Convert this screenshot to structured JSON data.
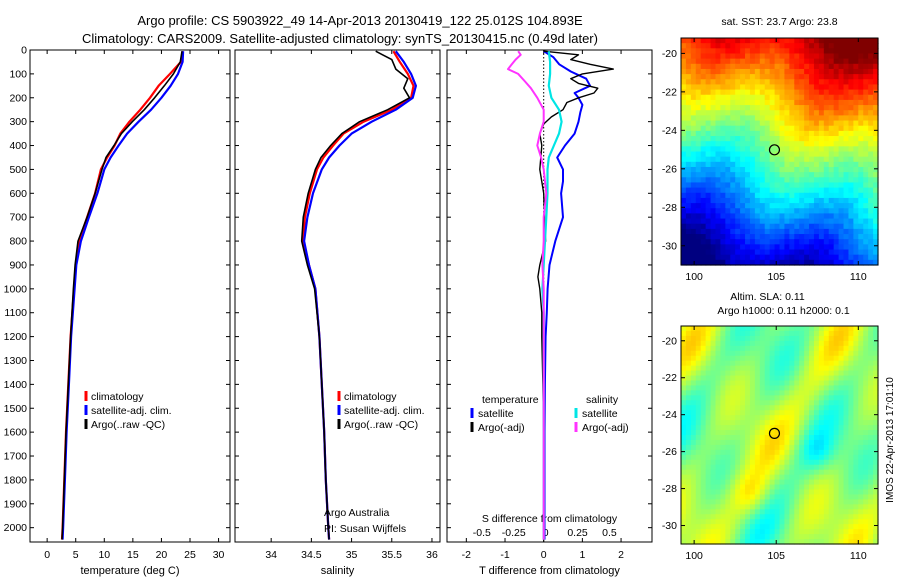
{
  "header": {
    "title_line1": "Argo profile: CS 5903922_49 14-Apr-2013 20130419_122 25.012S 104.893E",
    "title_line2": "Climatology: CARS2009. Satellite-adjusted climatology: synTS_20130415.nc (0.49d later)"
  },
  "credit": {
    "text": "IMOS 22-Apr-2013 17:01:10"
  },
  "colors": {
    "climatology": "#ff0000",
    "satellite": "#0000ff",
    "argo": "#000000",
    "sat_s": "#00e5e5",
    "argo_s": "#ff33ff"
  },
  "chart_data": [
    {
      "id": "temperature",
      "type": "line",
      "xlabel": "temperature (deg C)",
      "ylabel": "",
      "xlim": [
        -3,
        32
      ],
      "ylim": [
        2060,
        0
      ],
      "y_reversed": true,
      "xticks": [
        0,
        5,
        10,
        15,
        20,
        25,
        30
      ],
      "yticks": [
        0,
        100,
        200,
        300,
        400,
        500,
        600,
        700,
        800,
        900,
        1000,
        1100,
        1200,
        1300,
        1400,
        1500,
        1600,
        1700,
        1800,
        1900,
        2000
      ],
      "legend": [
        "climatology",
        "satellite-adj. clim.",
        "Argo(..raw -QC)"
      ],
      "legend_position": "lower-right",
      "series": [
        {
          "name": "climatology",
          "color": "#ff0000",
          "width": 2.2,
          "depth": [
            5,
            50,
            100,
            150,
            200,
            250,
            300,
            350,
            400,
            450,
            500,
            600,
            700,
            800,
            900,
            1000,
            1200,
            1400,
            1600,
            1800,
            2000,
            2050
          ],
          "values": [
            23.7,
            23.4,
            21.5,
            19.5,
            18.0,
            16.3,
            14.4,
            12.8,
            11.8,
            10.5,
            9.4,
            8.4,
            7.0,
            5.6,
            5.0,
            4.7,
            4.1,
            3.7,
            3.3,
            3.0,
            2.7,
            2.6
          ]
        },
        {
          "name": "satellite-adj. clim.",
          "color": "#0000ff",
          "width": 2.2,
          "depth": [
            5,
            50,
            100,
            150,
            200,
            250,
            300,
            350,
            400,
            450,
            500,
            600,
            700,
            800,
            900,
            1000,
            1200,
            1400,
            1600,
            1800,
            2000,
            2050
          ],
          "values": [
            23.8,
            23.7,
            22.9,
            21.6,
            20.0,
            18.2,
            16.0,
            14.0,
            12.5,
            11.1,
            10.0,
            8.8,
            7.3,
            5.9,
            5.1,
            4.8,
            4.2,
            3.8,
            3.4,
            3.1,
            2.8,
            2.7
          ]
        },
        {
          "name": "Argo(..raw -QC)",
          "color": "#000000",
          "width": 1.6,
          "depth": [
            5,
            50,
            100,
            150,
            200,
            250,
            300,
            350,
            400,
            450,
            500,
            600,
            700,
            800,
            900,
            1000,
            1200,
            1400,
            1600,
            1800,
            2000,
            2050
          ],
          "values": [
            23.6,
            23.3,
            22.1,
            20.5,
            18.8,
            17.0,
            14.9,
            13.0,
            11.7,
            10.3,
            9.6,
            8.4,
            7.0,
            5.4,
            4.9,
            4.6,
            4.1,
            3.7,
            3.3,
            3.0,
            2.7,
            2.6
          ]
        }
      ],
      "annotations": []
    },
    {
      "id": "salinity",
      "type": "line",
      "xlabel": "salinity",
      "ylabel": "",
      "xlim": [
        33.55,
        36.1
      ],
      "ylim": [
        2060,
        0
      ],
      "y_reversed": true,
      "xticks": [
        34,
        34.5,
        35,
        35.5,
        36
      ],
      "yticks": [
        0,
        100,
        200,
        300,
        400,
        500,
        600,
        700,
        800,
        900,
        1000,
        1100,
        1200,
        1300,
        1400,
        1500,
        1600,
        1700,
        1800,
        1900,
        2000
      ],
      "legend": [
        "climatology",
        "satellite-adj. clim.",
        "Argo(..raw -QC)"
      ],
      "legend_position": "lower-right",
      "series": [
        {
          "name": "climatology",
          "color": "#ff0000",
          "width": 2.2,
          "depth": [
            5,
            50,
            100,
            150,
            200,
            250,
            300,
            350,
            400,
            450,
            500,
            600,
            700,
            800,
            900,
            1000,
            1200,
            1400,
            1600,
            1800,
            2000,
            2050
          ],
          "values": [
            35.52,
            35.6,
            35.7,
            35.77,
            35.74,
            35.5,
            35.15,
            34.9,
            34.77,
            34.65,
            34.57,
            34.48,
            34.42,
            34.4,
            34.47,
            34.55,
            34.6,
            34.63,
            34.66,
            34.68,
            34.71,
            34.72
          ]
        },
        {
          "name": "satellite-adj. clim.",
          "color": "#0000ff",
          "width": 2.2,
          "depth": [
            5,
            50,
            100,
            150,
            200,
            250,
            300,
            350,
            400,
            450,
            500,
            600,
            700,
            800,
            900,
            1000,
            1200,
            1400,
            1600,
            1800,
            2000,
            2050
          ],
          "values": [
            35.55,
            35.65,
            35.74,
            35.8,
            35.76,
            35.55,
            35.25,
            35.0,
            34.85,
            34.72,
            34.63,
            34.52,
            34.45,
            34.41,
            34.47,
            34.55,
            34.6,
            34.63,
            34.66,
            34.68,
            34.71,
            34.72
          ]
        },
        {
          "name": "Argo(..raw -QC)",
          "color": "#000000",
          "width": 1.6,
          "depth": [
            5,
            40,
            80,
            120,
            160,
            200,
            250,
            300,
            350,
            400,
            450,
            500,
            600,
            700,
            800,
            900,
            1000,
            1200,
            1400,
            1600,
            1800,
            2000,
            2050
          ],
          "values": [
            35.3,
            35.5,
            35.55,
            35.7,
            35.65,
            35.72,
            35.45,
            35.1,
            34.88,
            34.74,
            34.62,
            34.55,
            34.46,
            34.4,
            34.38,
            34.45,
            34.54,
            34.6,
            34.63,
            34.66,
            34.68,
            34.71,
            34.72
          ]
        }
      ],
      "annotations": [
        "Argo Australia",
        "PI: Susan Wijffels"
      ]
    },
    {
      "id": "difference",
      "type": "line",
      "xlabel": "T difference from climatology",
      "x2label": "S difference from climatology",
      "ylabel": "",
      "xlim": [
        -2.5,
        2.8
      ],
      "ylim": [
        2060,
        0
      ],
      "y_reversed": true,
      "xticks": [
        -2,
        -1,
        0,
        1,
        2
      ],
      "x2ticks": [
        "-0.5",
        "-0.25",
        "0",
        "0.25",
        "0.5"
      ],
      "yticks": [
        0,
        100,
        200,
        300,
        400,
        500,
        600,
        700,
        800,
        900,
        1000,
        1100,
        1200,
        1300,
        1400,
        1500,
        1600,
        1700,
        1800,
        1900,
        2000
      ],
      "legend": [
        "temperature",
        "satellite",
        "Argo(-adj)",
        "salinity",
        "satellite",
        "Argo(-adj)"
      ],
      "legend_position": "lower-center",
      "series": [
        {
          "name": "satellite",
          "quantity": "temperature",
          "color": "#0000ff",
          "width": 2,
          "depth": [
            5,
            30,
            60,
            90,
            120,
            150,
            180,
            200,
            230,
            260,
            300,
            350,
            400,
            450,
            500,
            550,
            600,
            700,
            800,
            900,
            1000,
            1100,
            1200,
            1400,
            1600,
            1800,
            2000,
            2050
          ],
          "values": [
            0.0,
            0.25,
            0.4,
            0.7,
            1.1,
            1.2,
            0.8,
            0.9,
            1.0,
            0.95,
            0.9,
            0.8,
            0.55,
            0.35,
            0.5,
            0.5,
            0.45,
            0.5,
            0.3,
            0.15,
            0.1,
            0.08,
            0.05,
            0.03,
            0.02,
            0.02,
            0.02,
            0.02
          ]
        },
        {
          "name": "Argo(-adj)",
          "quantity": "temperature",
          "color": "#000000",
          "width": 1.4,
          "depth": [
            5,
            20,
            40,
            60,
            80,
            100,
            120,
            140,
            160,
            180,
            200,
            220,
            250,
            280,
            310,
            350,
            400,
            500,
            600,
            700,
            800,
            900,
            950,
            1000,
            1100,
            1200,
            1400,
            1600,
            1800,
            2000,
            2050
          ],
          "values": [
            0.0,
            0.9,
            0.7,
            1.2,
            1.8,
            1.0,
            0.7,
            0.9,
            1.4,
            1.3,
            0.9,
            0.6,
            0.5,
            0.2,
            0.0,
            -0.1,
            -0.05,
            -0.1,
            0.0,
            0.02,
            0.05,
            -0.1,
            -0.15,
            -0.1,
            -0.05,
            -0.05,
            -0.02,
            0.0,
            0.0,
            0.0,
            0.0
          ]
        },
        {
          "name": "satellite",
          "quantity": "salinity",
          "color": "#00e5e5",
          "width": 2.2,
          "depth": [
            5,
            50,
            100,
            150,
            200,
            250,
            300,
            350,
            400,
            450,
            500,
            600,
            700,
            800,
            900,
            1000,
            1100,
            1200,
            1400,
            1600,
            1800,
            2000,
            2050
          ],
          "values": [
            0.04,
            0.05,
            0.05,
            0.04,
            0.06,
            0.12,
            0.14,
            0.12,
            0.08,
            0.04,
            0.03,
            0.03,
            0.02,
            0.01,
            0.0,
            -0.01,
            0.0,
            0.0,
            0.0,
            0.0,
            0.0,
            0.0,
            0.0
          ]
        },
        {
          "name": "Argo(-adj)",
          "quantity": "salinity",
          "color": "#ff33ff",
          "width": 2.0,
          "depth": [
            5,
            20,
            40,
            60,
            80,
            100,
            130,
            160,
            200,
            250,
            300,
            350,
            400,
            450,
            500,
            600,
            700,
            800,
            900,
            1000,
            1100,
            1200,
            1400,
            1600,
            1800,
            2000,
            2050
          ],
          "values": [
            -0.2,
            -0.18,
            -0.22,
            -0.25,
            -0.28,
            -0.2,
            -0.15,
            -0.1,
            -0.05,
            0.0,
            0.0,
            -0.03,
            -0.05,
            -0.02,
            0.0,
            0.02,
            0.0,
            0.0,
            -0.01,
            0.0,
            0.0,
            0.0,
            0.0,
            0.0,
            0.0,
            0.0,
            0.0
          ]
        }
      ],
      "annotations": []
    }
  ],
  "maps": [
    {
      "id": "sst-map",
      "title": "sat. SST: 23.7 Argo: 23.8",
      "xlim": [
        99.2,
        111.2
      ],
      "ylim": [
        -31,
        -19.2
      ],
      "xticks": [
        100,
        105,
        110
      ],
      "yticks": [
        -20,
        -22,
        -24,
        -26,
        -28,
        -30
      ],
      "marker": [
        104.893,
        -25.012
      ],
      "colormap": "jet"
    },
    {
      "id": "sla-map",
      "title_line1": "Altim. SLA: 0.11",
      "title_line2": "Argo h1000: 0.11 h2000: 0.1",
      "xlim": [
        99.2,
        111.2
      ],
      "ylim": [
        -31,
        -19.2
      ],
      "xticks": [
        100,
        105,
        110
      ],
      "yticks": [
        -20,
        -22,
        -24,
        -26,
        -28,
        -30
      ],
      "marker": [
        104.893,
        -25.012
      ],
      "colormap": "jet"
    }
  ]
}
